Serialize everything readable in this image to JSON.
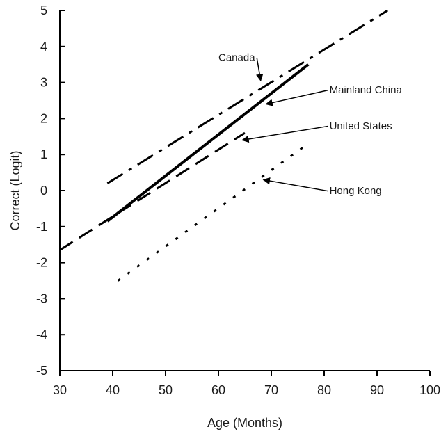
{
  "chart_data": {
    "type": "line",
    "xlabel": "Age (Months)",
    "ylabel": "Correct (Logit)",
    "xlim": [
      30,
      100
    ],
    "ylim": [
      -5,
      5
    ],
    "xticks": [
      30,
      40,
      50,
      60,
      70,
      80,
      90,
      100
    ],
    "yticks": [
      5,
      4,
      3,
      2,
      1,
      0,
      -1,
      -2,
      -3,
      -4,
      -5
    ],
    "grid": false,
    "legend": "none",
    "series": [
      {
        "name": "Canada",
        "style": "dash-dot",
        "color": "#000000",
        "x": [
          39,
          92
        ],
        "y": [
          0.2,
          5.0
        ],
        "label_at": [
          60,
          3.6
        ],
        "arrow_to": [
          68,
          3.05
        ]
      },
      {
        "name": "Mainland China",
        "style": "solid",
        "color": "#000000",
        "x": [
          39,
          77
        ],
        "y": [
          -0.85,
          3.5
        ],
        "label_at": [
          81,
          2.7
        ],
        "arrow_to": [
          69,
          2.4
        ]
      },
      {
        "name": "United States",
        "style": "dashed",
        "color": "#000000",
        "x": [
          30,
          65
        ],
        "y": [
          -1.65,
          1.6
        ],
        "label_at": [
          81,
          1.7
        ],
        "arrow_to": [
          64.5,
          1.4
        ]
      },
      {
        "name": "Hong Kong",
        "style": "dotted",
        "color": "#000000",
        "x": [
          41,
          76
        ],
        "y": [
          -2.5,
          1.2
        ],
        "label_at": [
          81,
          -0.1
        ],
        "arrow_to": [
          68.5,
          0.3
        ]
      }
    ]
  }
}
